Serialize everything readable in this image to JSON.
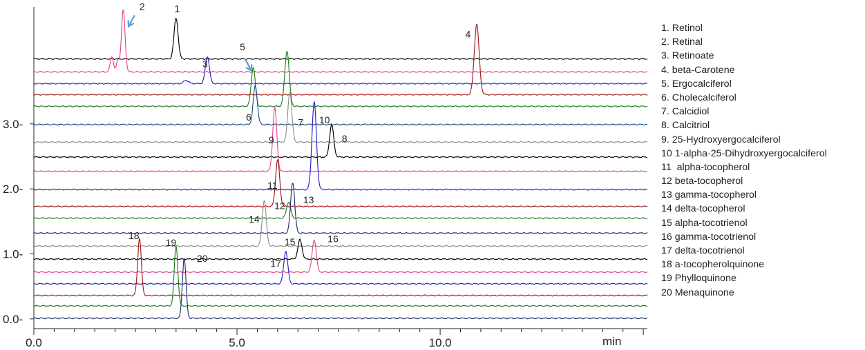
{
  "chart_data": {
    "type": "line",
    "title": "",
    "xlabel": "min",
    "ylabel": "",
    "xlim": [
      0,
      15.1
    ],
    "ylim": [
      -0.15,
      4.8
    ],
    "x_ticks": [
      {
        "value": 0,
        "label": "0.0"
      },
      {
        "value": 5,
        "label": "5.0"
      },
      {
        "value": 10,
        "label": "10.0"
      }
    ],
    "y_ticks": [
      {
        "value": 0,
        "label": "0.0-"
      },
      {
        "value": 1,
        "label": "1.0-"
      },
      {
        "value": 2,
        "label": "2.0-"
      },
      {
        "value": 3,
        "label": "3.0-"
      }
    ],
    "legend_position": "right",
    "legend": [
      "1. Retinol",
      "2. Retinal",
      "3. Retinoate",
      "4. beta-Carotene",
      "5. Ergocalciferol",
      "6. Cholecalciferol",
      "7. Calcidiol",
      "8. Calcitriol",
      "9. 25-Hydroxyergocalciferol",
      "10 1-alpha-25-Dihydroxyergocalciferol",
      "11  alpha-tocopherol",
      "12 beta-tocopherol",
      "13 gamma-tocopherol",
      "14 delta-tocopherol",
      "15 alpha-tocotrienol",
      "16 gamma-tocotrienol",
      "17 delta-tocotrienol",
      "18 a-tocopherolquinone",
      "19 Phylloquinone",
      "20 Menaquinone"
    ],
    "series": [
      {
        "color": "#000000",
        "baseline": 4.0,
        "peaks": [
          [
            3.5,
            0.63,
            0.05
          ]
        ]
      },
      {
        "color": "#e8428c",
        "baseline": 3.8,
        "peaks": [
          [
            1.92,
            0.23,
            0.04
          ],
          [
            2.07,
            0.18,
            0.035
          ],
          [
            2.2,
            0.95,
            0.045
          ]
        ]
      },
      {
        "color": "#1f1fc8",
        "baseline": 3.62,
        "peaks": [
          [
            4.27,
            0.42,
            0.05
          ],
          [
            3.75,
            0.05,
            0.06
          ]
        ]
      },
      {
        "color": "#a01818",
        "baseline": 3.45,
        "peaks": [
          [
            10.9,
            1.08,
            0.06
          ]
        ]
      },
      {
        "color": "#1e7d1e",
        "baseline": 3.27,
        "peaks": [
          [
            5.4,
            0.6,
            0.05
          ],
          [
            6.23,
            0.85,
            0.055
          ]
        ]
      },
      {
        "color": "#1e4f8c",
        "baseline": 2.99,
        "peaks": [
          [
            5.45,
            0.6,
            0.05
          ]
        ]
      },
      {
        "color": "#8c8c8c",
        "baseline": 2.72,
        "peaks": [
          [
            6.3,
            0.77,
            0.05
          ]
        ]
      },
      {
        "color": "#000000",
        "baseline": 2.49,
        "peaks": [
          [
            7.33,
            0.5,
            0.05
          ]
        ]
      },
      {
        "color": "#e8428c",
        "baseline": 2.27,
        "peaks": [
          [
            5.93,
            0.98,
            0.05
          ]
        ]
      },
      {
        "color": "#1f1fc8",
        "baseline": 1.99,
        "peaks": [
          [
            6.9,
            1.35,
            0.055
          ]
        ]
      },
      {
        "color": "#a01818",
        "baseline": 1.73,
        "peaks": [
          [
            6.0,
            0.72,
            0.05
          ]
        ]
      },
      {
        "color": "#1e7d1e",
        "baseline": 1.55,
        "peaks": [
          [
            6.27,
            0.25,
            0.05
          ]
        ]
      },
      {
        "color": "#1e2f70",
        "baseline": 1.32,
        "peaks": [
          [
            6.37,
            0.78,
            0.05
          ]
        ]
      },
      {
        "color": "#8c8c8c",
        "baseline": 1.12,
        "peaks": [
          [
            5.67,
            0.7,
            0.05
          ]
        ]
      },
      {
        "color": "#000000",
        "baseline": 0.92,
        "peaks": [
          [
            6.55,
            0.3,
            0.05
          ]
        ]
      },
      {
        "color": "#e8428c",
        "baseline": 0.72,
        "peaks": [
          [
            6.9,
            0.5,
            0.05
          ]
        ]
      },
      {
        "color": "#1f1fc8",
        "baseline": 0.54,
        "peaks": [
          [
            6.2,
            0.5,
            0.05
          ]
        ]
      },
      {
        "color": "#a01818",
        "baseline": 0.36,
        "peaks": [
          [
            2.6,
            0.88,
            0.045
          ]
        ]
      },
      {
        "color": "#1e7d1e",
        "baseline": 0.2,
        "peaks": [
          [
            3.5,
            0.92,
            0.045
          ]
        ]
      },
      {
        "color": "#1e2f70",
        "baseline": 0.01,
        "peaks": [
          [
            3.7,
            0.92,
            0.045
          ]
        ]
      }
    ],
    "peak_labels": [
      {
        "text": "1",
        "x": 3.46,
        "y": 4.72
      },
      {
        "text": "2",
        "x": 2.6,
        "y": 4.75
      },
      {
        "text": "3",
        "x": 4.15,
        "y": 3.87
      },
      {
        "text": "4",
        "x": 10.62,
        "y": 4.33
      },
      {
        "text": "5",
        "x": 5.07,
        "y": 4.13
      },
      {
        "text": "6",
        "x": 5.22,
        "y": 3.05
      },
      {
        "text": "7",
        "x": 6.5,
        "y": 2.97
      },
      {
        "text": "8",
        "x": 7.58,
        "y": 2.72
      },
      {
        "text": "9",
        "x": 5.78,
        "y": 2.7
      },
      {
        "text": "10",
        "x": 7.02,
        "y": 3.01
      },
      {
        "text": "11",
        "x": 5.75,
        "y": 2.0
      },
      {
        "text": "12",
        "x": 5.92,
        "y": 1.69
      },
      {
        "text": "13",
        "x": 6.63,
        "y": 1.78
      },
      {
        "text": "14",
        "x": 5.29,
        "y": 1.48
      },
      {
        "text": "15",
        "x": 6.17,
        "y": 1.13
      },
      {
        "text": "16",
        "x": 7.23,
        "y": 1.18
      },
      {
        "text": "17",
        "x": 5.82,
        "y": 0.8
      },
      {
        "text": "18",
        "x": 2.33,
        "y": 1.23
      },
      {
        "text": "19",
        "x": 3.24,
        "y": 1.12
      },
      {
        "text": "20",
        "x": 4.01,
        "y": 0.88
      }
    ],
    "annotations": [
      {
        "type": "arrow",
        "color": "#5a9fd6",
        "from": [
          2.48,
          4.67
        ],
        "to": [
          2.33,
          4.5
        ]
      },
      {
        "type": "arrow",
        "color": "#5a9fd6",
        "from": [
          5.2,
          4.0
        ],
        "to": [
          5.35,
          3.82
        ]
      }
    ]
  }
}
